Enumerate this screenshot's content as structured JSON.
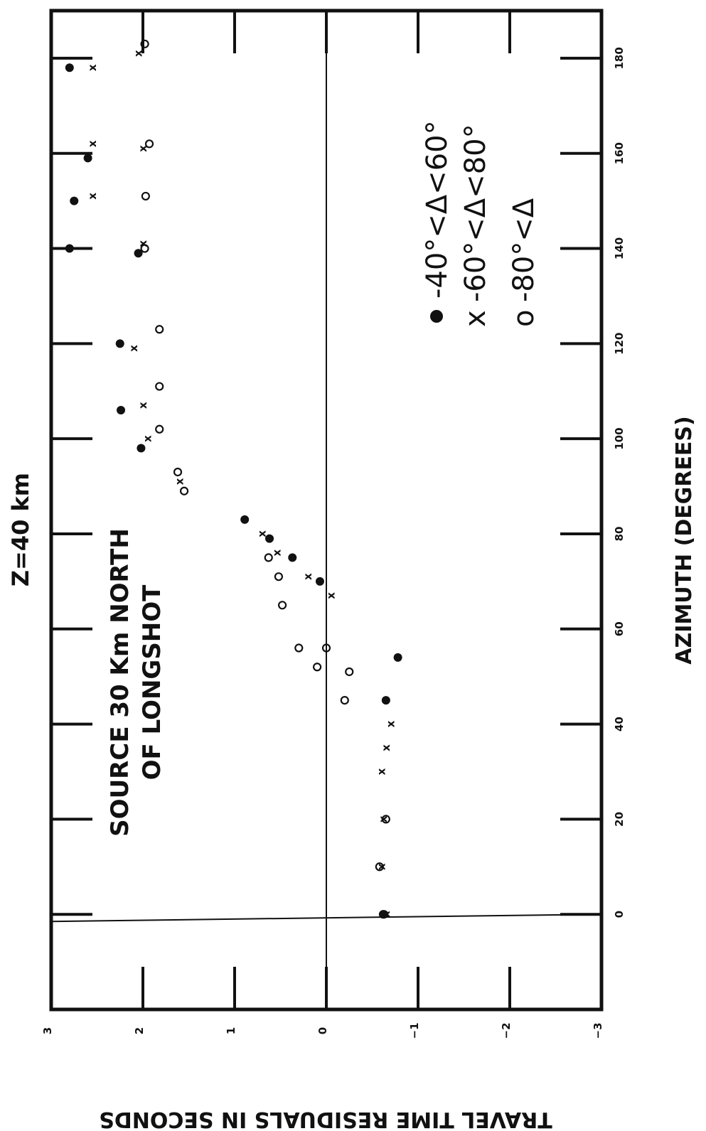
{
  "chart_data": {
    "type": "scatter",
    "title": "Z=40 km",
    "annotation": [
      "SOURCE 30 Km NORTH",
      "OF LONGSHOT"
    ],
    "xlabel": "AZIMUTH (DEGREES)",
    "ylabel": "TRAVEL TIME RESIDUALS IN SECONDS",
    "xlim": [
      -20,
      190
    ],
    "ylim": [
      -3,
      3
    ],
    "x_ticks": [
      0,
      20,
      40,
      60,
      80,
      100,
      120,
      140,
      160,
      180
    ],
    "y_ticks": [
      3,
      2,
      1,
      0,
      -1,
      -2,
      -3
    ],
    "grid": false,
    "reference_lines": [
      {
        "axis": "x",
        "value": 0
      },
      {
        "axis": "y",
        "value": 0
      }
    ],
    "legend": {
      "placement": "right",
      "entries": [
        {
          "symbol": "●",
          "label": "-40°<Δ<60°"
        },
        {
          "symbol": "x",
          "label": "-60°<Δ<80°"
        },
        {
          "symbol": "o",
          "label": "-80°<Δ"
        }
      ]
    },
    "series": [
      {
        "name": "-40°<Δ<60°",
        "marker": "dot",
        "points": [
          {
            "x": 0,
            "y": -0.63
          },
          {
            "x": 45,
            "y": -0.65
          },
          {
            "x": 54,
            "y": -0.78
          },
          {
            "x": 70,
            "y": 0.07
          },
          {
            "x": 75,
            "y": 0.37
          },
          {
            "x": 79,
            "y": 0.62
          },
          {
            "x": 83,
            "y": 0.89
          },
          {
            "x": 98,
            "y": 2.02
          },
          {
            "x": 106,
            "y": 2.24
          },
          {
            "x": 120,
            "y": 2.25
          },
          {
            "x": 139,
            "y": 2.05
          },
          {
            "x": 140,
            "y": 2.8
          },
          {
            "x": 150,
            "y": 2.75
          },
          {
            "x": 159,
            "y": 2.6
          },
          {
            "x": 178,
            "y": 2.8
          }
        ]
      },
      {
        "name": "-60°<Δ<80°",
        "marker": "x",
        "points": [
          {
            "x": 0,
            "y": -0.65
          },
          {
            "x": 10,
            "y": -0.6
          },
          {
            "x": 20,
            "y": -0.62
          },
          {
            "x": 30,
            "y": -0.6
          },
          {
            "x": 35,
            "y": -0.65
          },
          {
            "x": 40,
            "y": -0.7
          },
          {
            "x": 67,
            "y": -0.05
          },
          {
            "x": 71,
            "y": 0.2
          },
          {
            "x": 76,
            "y": 0.54
          },
          {
            "x": 80,
            "y": 0.7
          },
          {
            "x": 91,
            "y": 1.6
          },
          {
            "x": 100,
            "y": 1.95
          },
          {
            "x": 107,
            "y": 2.0
          },
          {
            "x": 119,
            "y": 2.1
          },
          {
            "x": 141,
            "y": 2.0
          },
          {
            "x": 151,
            "y": 2.55
          },
          {
            "x": 161,
            "y": 2.0
          },
          {
            "x": 162,
            "y": 2.55
          },
          {
            "x": 178,
            "y": 2.55
          },
          {
            "x": 181,
            "y": 2.05
          }
        ]
      },
      {
        "name": "-80°<Δ",
        "marker": "o",
        "points": [
          {
            "x": 0,
            "y": -0.62
          },
          {
            "x": 10,
            "y": -0.58
          },
          {
            "x": 20,
            "y": -0.65
          },
          {
            "x": 45,
            "y": -0.2
          },
          {
            "x": 51,
            "y": -0.25
          },
          {
            "x": 52,
            "y": 0.1
          },
          {
            "x": 56,
            "y": 0.3
          },
          {
            "x": 56,
            "y": 0.0
          },
          {
            "x": 65,
            "y": 0.48
          },
          {
            "x": 71,
            "y": 0.52
          },
          {
            "x": 75,
            "y": 0.63
          },
          {
            "x": 89,
            "y": 1.55
          },
          {
            "x": 93,
            "y": 1.62
          },
          {
            "x": 102,
            "y": 1.82
          },
          {
            "x": 111,
            "y": 1.82
          },
          {
            "x": 123,
            "y": 1.82
          },
          {
            "x": 140,
            "y": 1.98
          },
          {
            "x": 151,
            "y": 1.97
          },
          {
            "x": 162,
            "y": 1.93
          },
          {
            "x": 183,
            "y": 1.98
          }
        ]
      }
    ]
  }
}
